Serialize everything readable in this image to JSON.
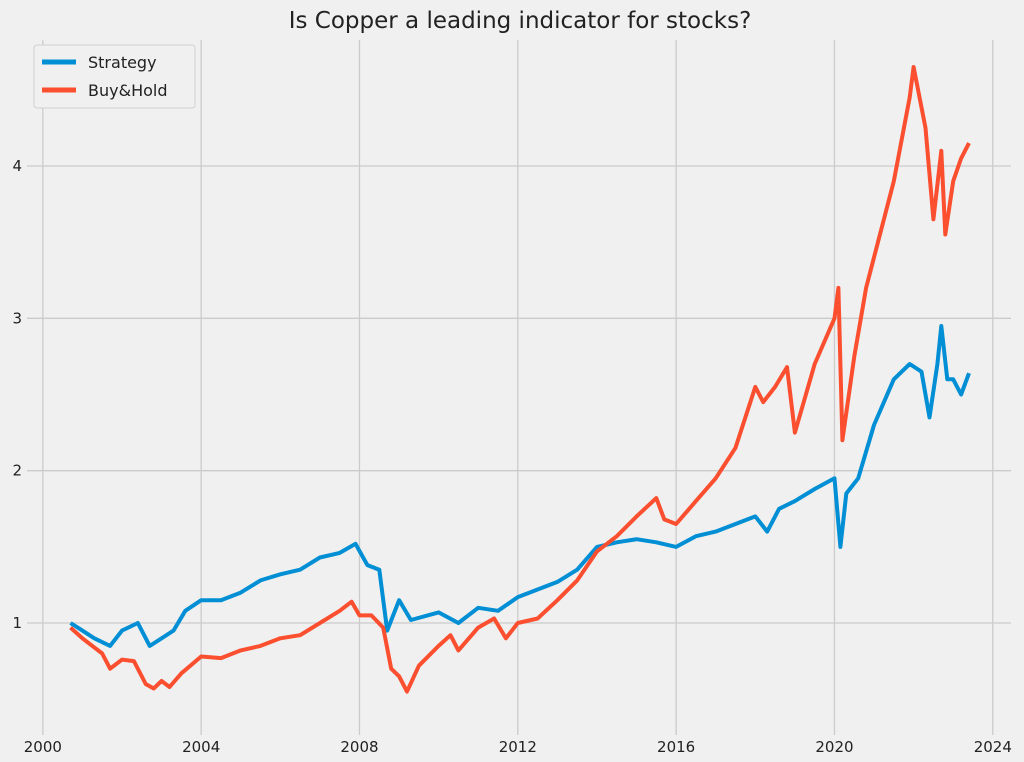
{
  "chart_data": {
    "type": "line",
    "title": "Is Copper a leading indicator for stocks?",
    "xlabel": "",
    "ylabel": "",
    "xlim": [
      1999.6,
      2024.46
    ],
    "ylim": [
      0.265,
      4.827
    ],
    "xticks": [
      2000,
      2004,
      2008,
      2012,
      2016,
      2020,
      2024
    ],
    "xtick_labels": [
      "2000",
      "2004",
      "2008",
      "2012",
      "2016",
      "2020",
      "2024"
    ],
    "yticks": [
      1,
      2,
      3,
      4
    ],
    "ytick_labels": [
      "1",
      "2",
      "3",
      "4"
    ],
    "grid": true,
    "legend_position": "top-left",
    "background": "#f0f0f0",
    "grid_color": "#cbcbcb",
    "series": [
      {
        "name": "Strategy",
        "color": "#008fd5",
        "x": [
          2000.7,
          2001.0,
          2001.3,
          2001.7,
          2002.0,
          2002.4,
          2002.7,
          2003.0,
          2003.3,
          2003.6,
          2004.0,
          2004.5,
          2005.0,
          2005.5,
          2006.0,
          2006.5,
          2007.0,
          2007.5,
          2007.9,
          2008.2,
          2008.5,
          2008.7,
          2009.0,
          2009.3,
          2010.0,
          2010.5,
          2011.0,
          2011.5,
          2012.0,
          2012.5,
          2013.0,
          2013.5,
          2014.0,
          2014.5,
          2015.0,
          2015.5,
          2016.0,
          2016.5,
          2017.0,
          2017.5,
          2018.0,
          2018.3,
          2018.6,
          2019.0,
          2019.5,
          2020.0,
          2020.15,
          2020.3,
          2020.6,
          2021.0,
          2021.5,
          2021.9,
          2022.2,
          2022.4,
          2022.6,
          2022.7,
          2022.85,
          2023.0,
          2023.2,
          2023.4
        ],
        "y": [
          1.0,
          0.95,
          0.9,
          0.85,
          0.95,
          1.0,
          0.85,
          0.9,
          0.95,
          1.08,
          1.15,
          1.15,
          1.2,
          1.28,
          1.32,
          1.35,
          1.43,
          1.46,
          1.52,
          1.38,
          1.35,
          0.95,
          1.15,
          1.02,
          1.07,
          1.0,
          1.1,
          1.08,
          1.17,
          1.22,
          1.27,
          1.35,
          1.5,
          1.53,
          1.55,
          1.53,
          1.5,
          1.57,
          1.6,
          1.65,
          1.7,
          1.6,
          1.75,
          1.8,
          1.88,
          1.95,
          1.5,
          1.85,
          1.95,
          2.3,
          2.6,
          2.7,
          2.65,
          2.35,
          2.7,
          2.95,
          2.6,
          2.6,
          2.5,
          2.64
        ]
      },
      {
        "name": "Buy&Hold",
        "color": "#fc4f30",
        "x": [
          2000.7,
          2001.0,
          2001.5,
          2001.7,
          2002.0,
          2002.3,
          2002.6,
          2002.8,
          2003.0,
          2003.2,
          2003.5,
          2004.0,
          2004.5,
          2005.0,
          2005.5,
          2006.0,
          2006.5,
          2007.0,
          2007.5,
          2007.8,
          2008.0,
          2008.3,
          2008.6,
          2008.8,
          2009.0,
          2009.2,
          2009.5,
          2010.0,
          2010.3,
          2010.5,
          2011.0,
          2011.4,
          2011.7,
          2012.0,
          2012.5,
          2013.0,
          2013.5,
          2014.0,
          2014.5,
          2015.0,
          2015.5,
          2015.7,
          2016.0,
          2016.5,
          2017.0,
          2017.5,
          2018.0,
          2018.2,
          2018.5,
          2018.8,
          2019.0,
          2019.5,
          2020.0,
          2020.1,
          2020.2,
          2020.5,
          2020.8,
          2021.0,
          2021.5,
          2021.9,
          2022.0,
          2022.3,
          2022.5,
          2022.7,
          2022.8,
          2023.0,
          2023.2,
          2023.4
        ],
        "y": [
          0.97,
          0.9,
          0.8,
          0.7,
          0.76,
          0.75,
          0.6,
          0.57,
          0.62,
          0.58,
          0.67,
          0.78,
          0.77,
          0.82,
          0.85,
          0.9,
          0.92,
          1.0,
          1.08,
          1.14,
          1.05,
          1.05,
          0.97,
          0.7,
          0.65,
          0.55,
          0.72,
          0.85,
          0.92,
          0.82,
          0.97,
          1.03,
          0.9,
          1.0,
          1.03,
          1.15,
          1.28,
          1.47,
          1.57,
          1.7,
          1.82,
          1.68,
          1.65,
          1.8,
          1.95,
          2.15,
          2.55,
          2.45,
          2.55,
          2.68,
          2.25,
          2.7,
          3.0,
          3.2,
          2.2,
          2.75,
          3.2,
          3.4,
          3.9,
          4.45,
          4.65,
          4.25,
          3.65,
          4.1,
          3.55,
          3.9,
          4.05,
          4.15
        ]
      }
    ]
  }
}
